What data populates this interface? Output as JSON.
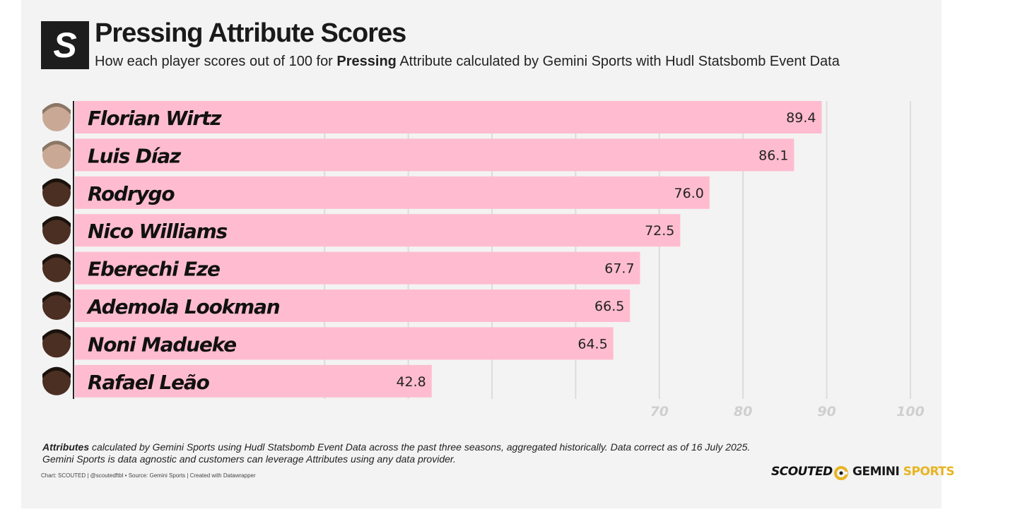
{
  "header": {
    "logo_letter": "S",
    "title": "Pressing Attribute Scores",
    "subtitle_before": "How each player scores out of 100 for ",
    "subtitle_bold": "Pressing",
    "subtitle_after": " Attribute calculated by Gemini Sports with Hudl Statsbomb Event Data"
  },
  "chart_data": {
    "type": "bar",
    "orientation": "horizontal",
    "title": "Pressing Attribute Scores",
    "categories": [
      "Florian Wirtz",
      "Luis Díaz",
      "Rodrygo",
      "Nico Williams",
      "Eberechi Eze",
      "Ademola Lookman",
      "Noni Madueke",
      "Rafael Leão"
    ],
    "values": [
      89.4,
      86.1,
      76.0,
      72.5,
      67.7,
      66.5,
      64.5,
      42.8
    ],
    "value_labels": [
      "89.4",
      "86.1",
      "76.0",
      "72.5",
      "67.7",
      "66.5",
      "64.5",
      "42.8"
    ],
    "xlim": [
      0,
      100
    ],
    "gridlines": [
      30,
      40,
      50,
      60,
      70,
      80,
      90,
      100
    ],
    "tick_labels": [
      "70",
      "80",
      "90",
      "100"
    ],
    "bar_color": "#ffbcd0",
    "grid": true,
    "legend": "none"
  },
  "footer": {
    "note_bold": "Attributes",
    "note_line1": " calculated by Gemini Sports using Hudl Statsbomb Event Data across the past three seasons, aggregated historically. Data correct as of 16 July 2025.",
    "note_line2": "Gemini Sports is data agnostic and customers can leverage Attributes using any data provider.",
    "credit": "Chart: SCOUTED | @scoutedftbl • Source: Gemini Sports | Created with Datawrapper",
    "brand_scouted": "SCOUTED",
    "brand_gemini_1": "GEMINI",
    "brand_gemini_2": " SPORTS",
    "brand_gemini_color": "#e8b422"
  }
}
